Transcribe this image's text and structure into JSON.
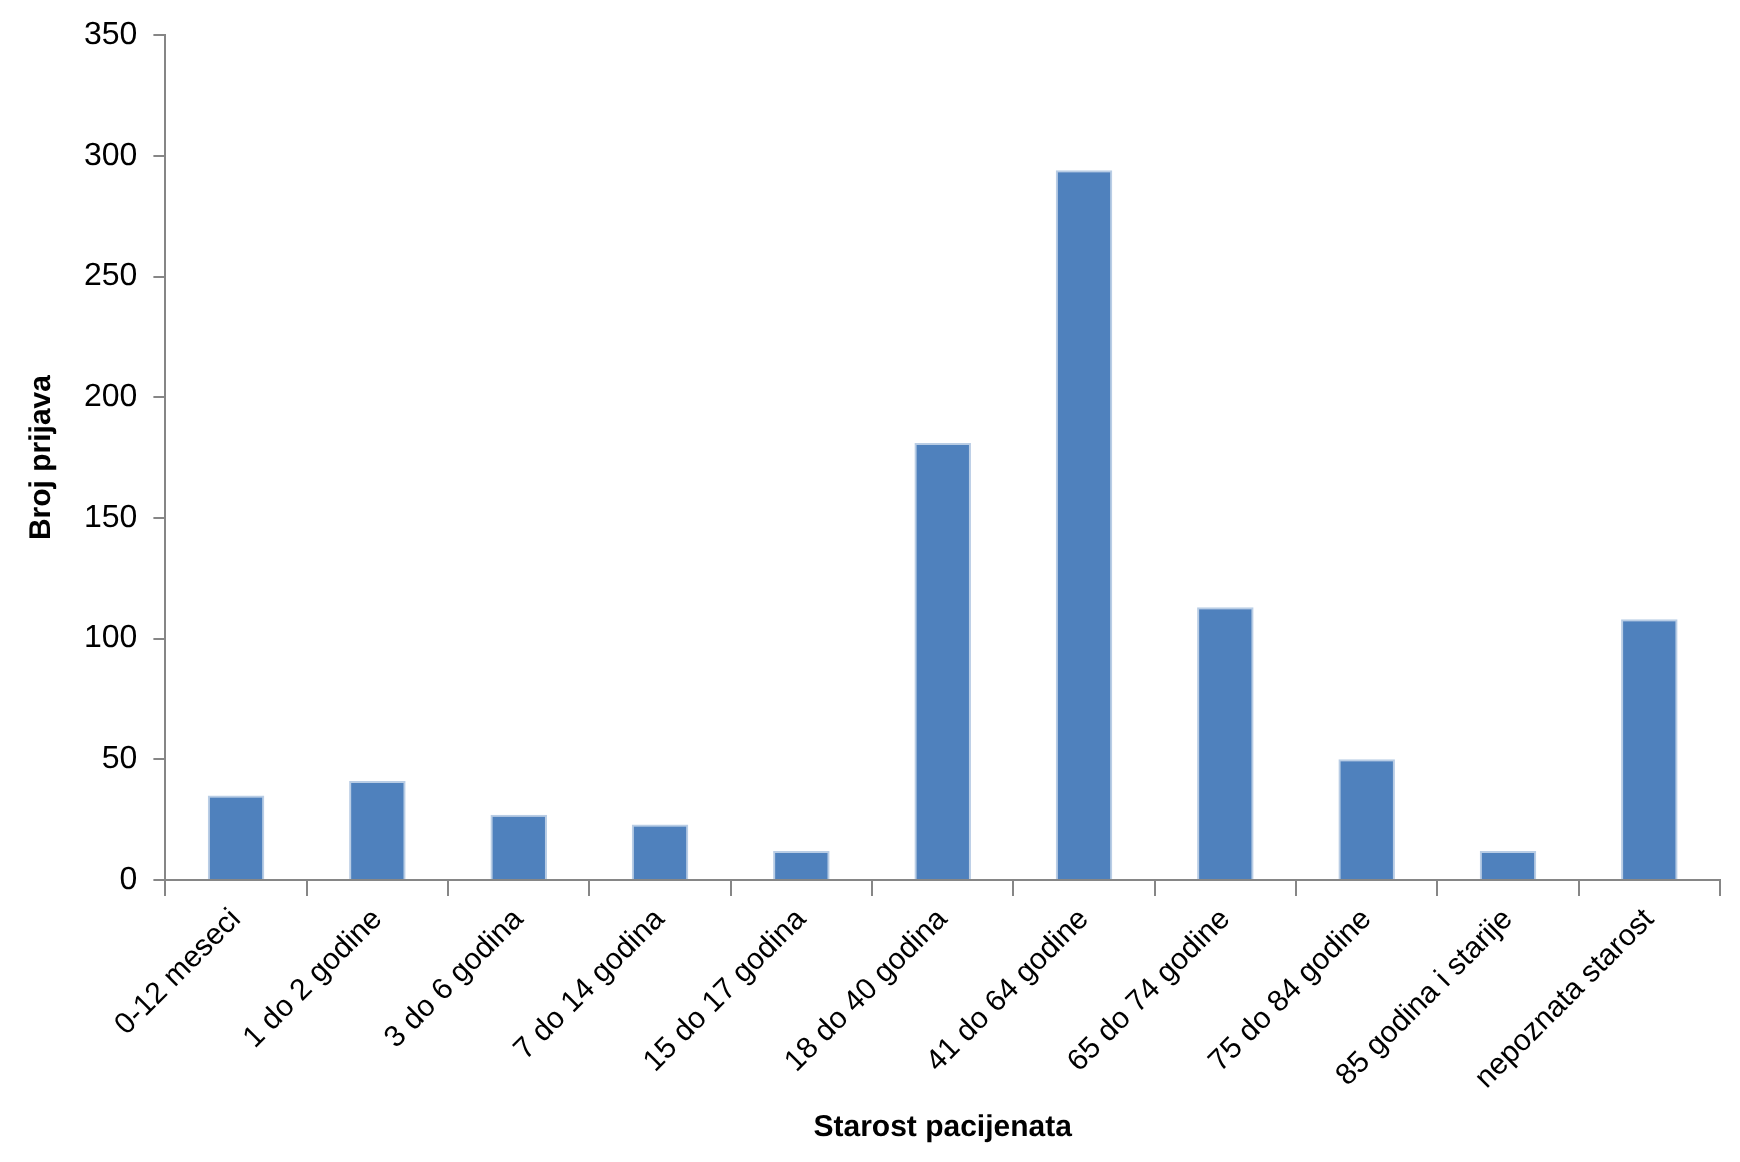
{
  "chart_data": {
    "type": "bar",
    "xlabel": "Starost pacijenata",
    "ylabel": "Broj prijava",
    "categories": [
      "0-12 meseci",
      "1 do 2 godine",
      "3 do 6 godina",
      "7 do 14 godina",
      "15 do 17 godina",
      "18 do 40 godina",
      "41 do 64 godine",
      "65 do 74 godine",
      "75 do 84 godine",
      "85 godina i starije",
      "nepoznata starost"
    ],
    "values": [
      35,
      41,
      27,
      23,
      12,
      181,
      294,
      113,
      50,
      12,
      108
    ],
    "color": "#4f81bd",
    "ylim": [
      0,
      350
    ],
    "yticks": [
      0,
      50,
      100,
      150,
      200,
      250,
      300,
      350
    ],
    "grid": false,
    "legend": false
  }
}
